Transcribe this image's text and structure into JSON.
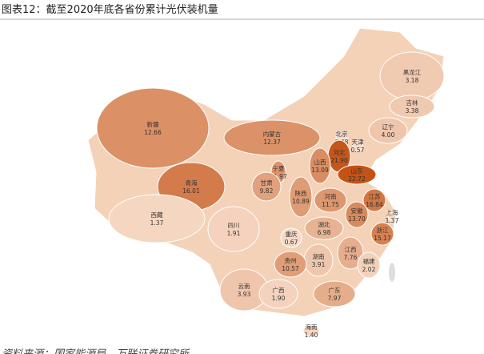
{
  "title": "图表12：截至2020年底各省份累计光伏装机量",
  "source": "资料来源：国家能源局，万联证券研究所",
  "regions": [
    {
      "name": "黑龙江",
      "value": 3.18
    },
    {
      "name": "吉林",
      "value": 3.38
    },
    {
      "name": "辽宁",
      "value": 4,
      "value_label": "4.00"
    },
    {
      "name": "北京",
      "value": 0.48
    },
    {
      "name": "天津",
      "value": 0.57
    },
    {
      "name": "河北",
      "value": 21.9,
      "value_label": "21.90"
    },
    {
      "name": "内蒙古",
      "value": 12.37
    },
    {
      "name": "山西",
      "value": 13.09
    },
    {
      "name": "山东",
      "value": 22.72
    },
    {
      "name": "宁夏",
      "value": 11.97
    },
    {
      "name": "甘肃",
      "value": 9.82
    },
    {
      "name": "陕西",
      "value": 10.89
    },
    {
      "name": "河南",
      "value": 11.75
    },
    {
      "name": "江苏",
      "value": 16.84
    },
    {
      "name": "上海",
      "value": 1.37
    },
    {
      "name": "安徽",
      "value": 13.7,
      "value_label": "13.70"
    },
    {
      "name": "新疆",
      "value": 12.66
    },
    {
      "name": "青海",
      "value": 16.01
    },
    {
      "name": "西藏",
      "value": 1.37
    },
    {
      "name": "四川",
      "value": 1.91
    },
    {
      "name": "湖北",
      "value": 6.98
    },
    {
      "name": "重庆",
      "value": 0.67
    },
    {
      "name": "浙江",
      "value": 15.17
    },
    {
      "name": "江西",
      "value": 7.76
    },
    {
      "name": "湖南",
      "value": 3.91
    },
    {
      "name": "福建",
      "value": 2.02
    },
    {
      "name": "贵州",
      "value": 10.57
    },
    {
      "name": "云南",
      "value": 3.93
    },
    {
      "name": "广西",
      "value": 1.9,
      "value_label": "1.90"
    },
    {
      "name": "广东",
      "value": 7.97
    },
    {
      "name": "海南",
      "value": 1.4,
      "value_label": "1.40"
    }
  ]
}
